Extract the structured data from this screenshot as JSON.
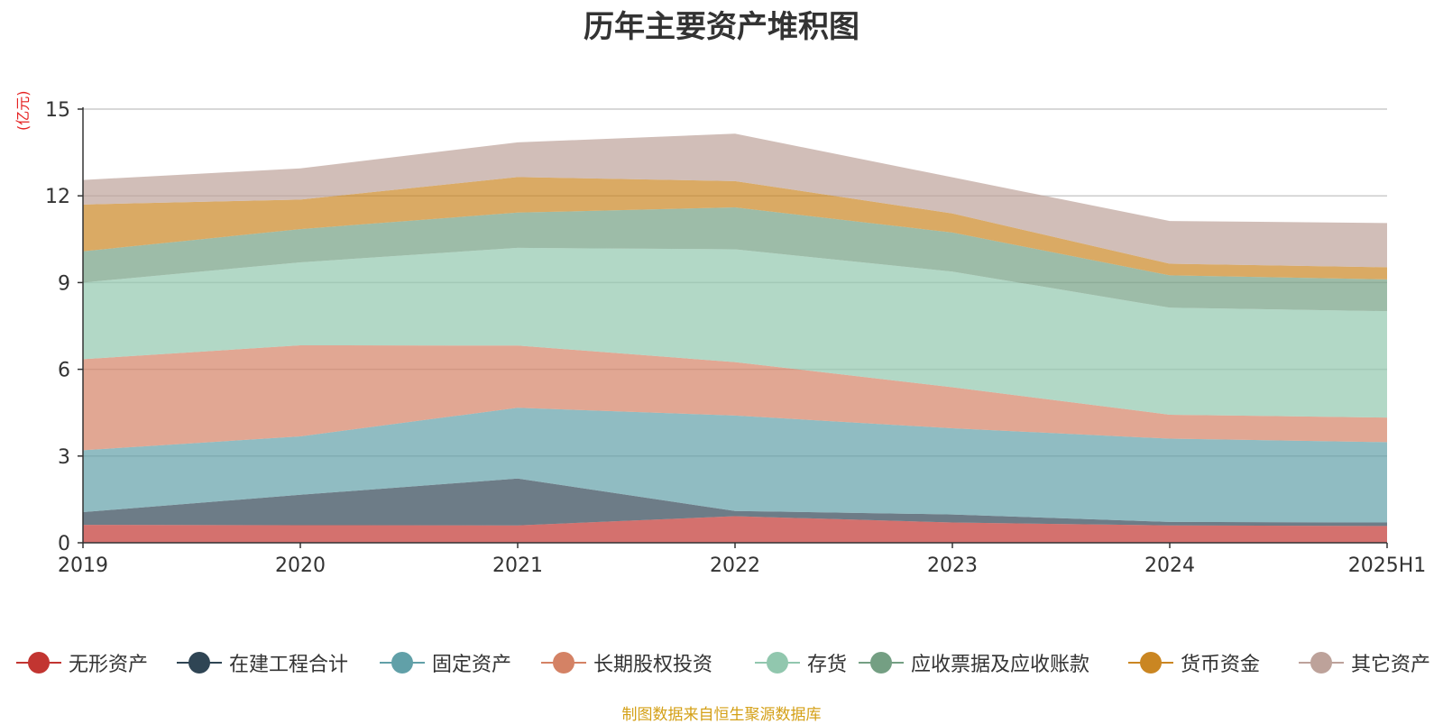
{
  "chart_data": {
    "type": "area",
    "stacked": true,
    "title": "历年主要资产堆积图",
    "ylabel": "(亿元)",
    "x": [
      "2019",
      "2020",
      "2021",
      "2022",
      "2023",
      "2024",
      "2025H1"
    ],
    "ylim": [
      0,
      15
    ],
    "yticks": [
      0,
      3,
      6,
      9,
      12,
      15
    ],
    "grid": true,
    "legend_position": "bottom",
    "series": [
      {
        "name": "无形资产",
        "color": "#c23531",
        "values": [
          0.62,
          0.61,
          0.6,
          0.92,
          0.7,
          0.6,
          0.58
        ]
      },
      {
        "name": "在建工程合计",
        "color": "#2f4554",
        "values": [
          0.44,
          1.05,
          1.62,
          0.18,
          0.28,
          0.12,
          0.12
        ]
      },
      {
        "name": "固定资产",
        "color": "#61a0a8",
        "values": [
          2.14,
          2.02,
          2.45,
          3.3,
          2.98,
          2.88,
          2.78
        ]
      },
      {
        "name": "长期股权投资",
        "color": "#d48265",
        "values": [
          3.15,
          3.15,
          2.15,
          1.85,
          1.42,
          0.83,
          0.85
        ]
      },
      {
        "name": "存货",
        "color": "#91c7ae",
        "values": [
          2.65,
          2.87,
          3.38,
          3.9,
          4.0,
          3.7,
          3.68
        ]
      },
      {
        "name": "应收票据及应收账款",
        "color": "#749f83",
        "values": [
          1.08,
          1.15,
          1.22,
          1.45,
          1.35,
          1.12,
          1.1
        ]
      },
      {
        "name": "货币资金",
        "color": "#ca8622",
        "values": [
          1.62,
          1.02,
          1.23,
          0.91,
          0.66,
          0.4,
          0.42
        ]
      },
      {
        "name": "其它资产",
        "color": "#bda29a",
        "values": [
          0.85,
          1.08,
          1.2,
          1.64,
          1.25,
          1.48,
          1.53
        ]
      }
    ]
  },
  "source_note": "制图数据来自恒生聚源数据库"
}
